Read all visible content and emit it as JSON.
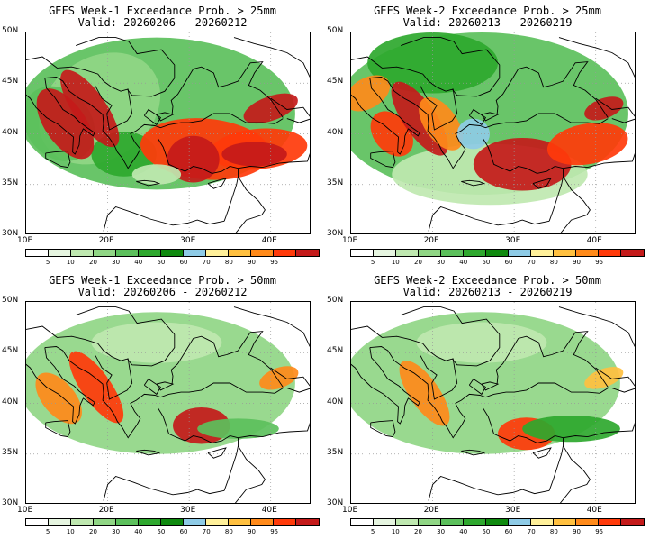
{
  "palette": [
    "#ffffff",
    "#e6f5e0",
    "#bfe8b0",
    "#90d685",
    "#5cc05c",
    "#2ea82e",
    "#0f8a0f",
    "#8ecbe6",
    "#fff09a",
    "#ffc040",
    "#ff8a1a",
    "#ff3a0a",
    "#c41a1a",
    "#a83030"
  ],
  "colorbar_labels": [
    "5",
    "10",
    "20",
    "30",
    "40",
    "50",
    "60",
    "70",
    "80",
    "90",
    "95"
  ],
  "lat_labels": [
    "50N",
    "45N",
    "40N",
    "35N",
    "30N"
  ],
  "lon_labels": [
    "10E",
    "20E",
    "30E",
    "40E"
  ],
  "map_extent": {
    "lon_min": 10,
    "lon_max": 45,
    "lat_min": 30,
    "lat_max": 50
  },
  "panels": [
    {
      "title": "GEFS Week-1 Exceedance Prob. > 25mm",
      "valid": "Valid: 20260206 - 20260212",
      "threshold_mm": 25,
      "week": 1
    },
    {
      "title": "GEFS Week-2 Exceedance Prob. > 25mm",
      "valid": "Valid: 20260213 - 20260219",
      "threshold_mm": 25,
      "week": 2
    },
    {
      "title": "GEFS Week-1 Exceedance Prob. > 50mm",
      "valid": "Valid: 20260206 - 20260212",
      "threshold_mm": 50,
      "week": 1
    },
    {
      "title": "GEFS Week-2 Exceedance Prob. > 50mm",
      "valid": "Valid: 20260213 - 20260219",
      "threshold_mm": 50,
      "week": 2
    }
  ]
}
